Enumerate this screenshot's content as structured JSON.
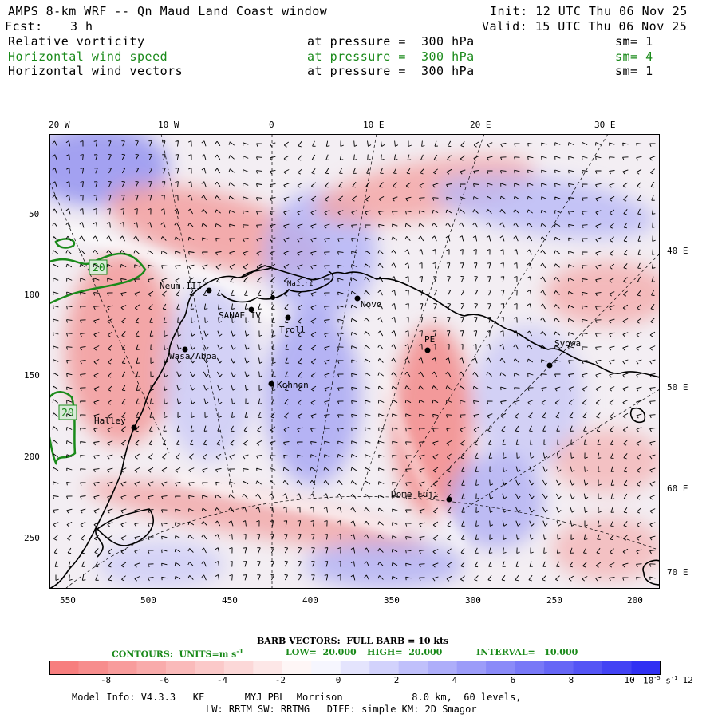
{
  "header": {
    "title": "AMPS 8-km WRF -- Qn Maud Land Coast window",
    "fcst_label": "Fcst:",
    "fcst_value": "3 h",
    "init": "Init: 12 UTC Thu 06 Nov 25",
    "valid": "Valid: 15 UTC Thu 06 Nov 25"
  },
  "fields": [
    {
      "name": "Relative vorticity",
      "level": "at pressure =  300 hPa",
      "sm": "sm= 1",
      "color": "#000000"
    },
    {
      "name": "Horizontal wind speed",
      "level": "at pressure =  300 hPa",
      "sm": "sm= 4",
      "color": "#1a8a1a"
    },
    {
      "name": "Horizontal wind vectors",
      "level": "at pressure =  300 hPa",
      "sm": "sm= 1",
      "color": "#000000"
    }
  ],
  "map": {
    "top_labels": [
      "20 W",
      "10 W",
      "0",
      "10 E",
      "20 E",
      "30 E"
    ],
    "left_labels": [
      "50",
      "100",
      "150",
      "200",
      "250"
    ],
    "right_labels": [
      "40 E",
      "50 E",
      "60 E",
      "70 E"
    ],
    "bottom_labels": [
      "550",
      "500",
      "450",
      "400",
      "350",
      "300",
      "250",
      "200"
    ],
    "stations": [
      "Neum.III",
      "SANAE IV",
      "Troll",
      "Novo",
      "PE",
      "Syowa",
      "Maitri",
      "Wasa/Aboa",
      "Kohnen",
      "Halley",
      "Dome Fuji"
    ],
    "contour_labels": [
      "20",
      "20"
    ],
    "colors": {
      "positive": "#f0504f",
      "negative": "#3a3af0",
      "contour": "#1a8a1a",
      "coast": "#000000"
    }
  },
  "legend": {
    "barb_text": "BARB VECTORS:  FULL BARB = 10 kts",
    "contours_label": "CONTOURS:  UNITS=m s",
    "contours_units_exp": "-1",
    "low": "LOW=  20.000",
    "high": "HIGH=  20.000",
    "interval": "INTERVAL=   10.000",
    "colorbar_ticks": [
      "-8",
      "-6",
      "-4",
      "-2",
      "0",
      "2",
      "4",
      "6",
      "8",
      "10",
      "12"
    ],
    "colorbar_unit": "10",
    "colorbar_unit_exp": "-5",
    "colorbar_unit_suffix": " s",
    "colorbar_unit_suffix_exp": "-1",
    "colorbar_colors": [
      "#f77e7e",
      "#f78d8d",
      "#f89c9c",
      "#f9abab",
      "#fababa",
      "#fbc9c9",
      "#fcd8d8",
      "#fde7e7",
      "#fef6f6",
      "#f6f6fe",
      "#e4e4fd",
      "#d2d2fc",
      "#c0c0fb",
      "#aeaefa",
      "#9c9cf9",
      "#8a8af8",
      "#7878f7",
      "#6666f6",
      "#5454f5",
      "#4242f4",
      "#3030f3"
    ]
  },
  "footer": {
    "line1": "Model Info: V4.3.3   KF       MYJ PBL  Morrison            8.0 km,  60 levels,",
    "line2": "LW: RRTM SW: RRTMG   DIFF: simple KM: 2D Smagor"
  }
}
